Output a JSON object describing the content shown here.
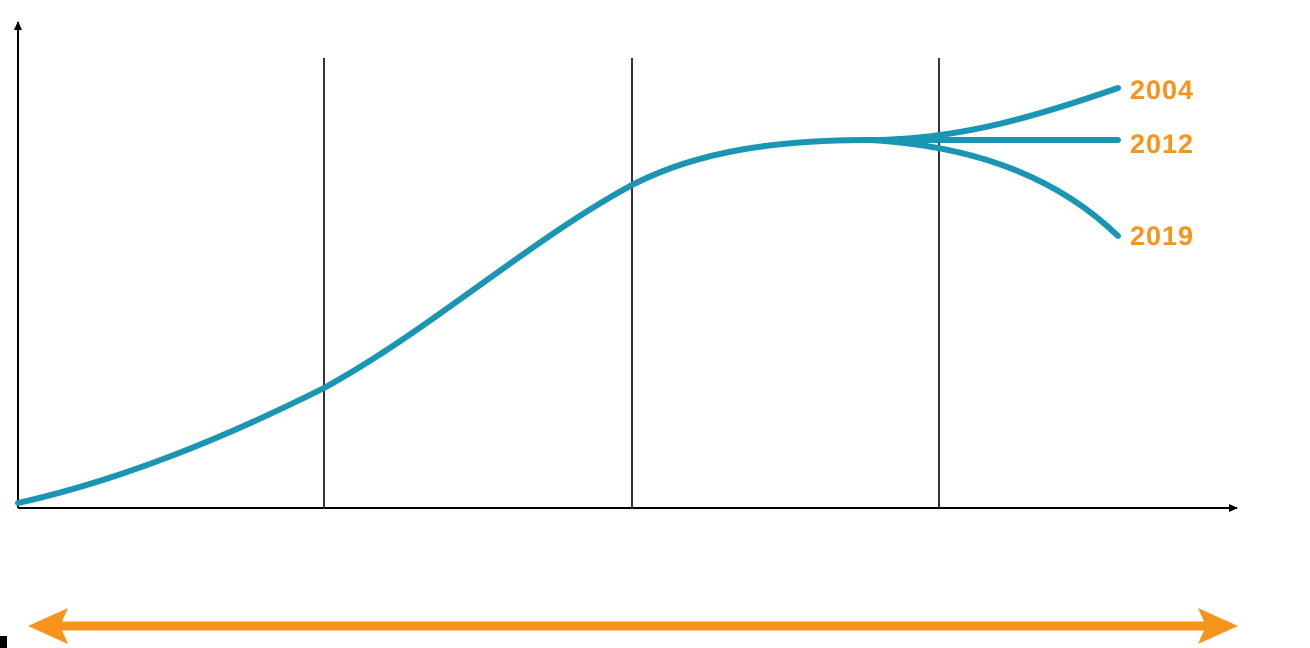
{
  "branches": [
    {
      "label": "2004"
    },
    {
      "label": "2012"
    },
    {
      "label": "2019"
    }
  ]
}
